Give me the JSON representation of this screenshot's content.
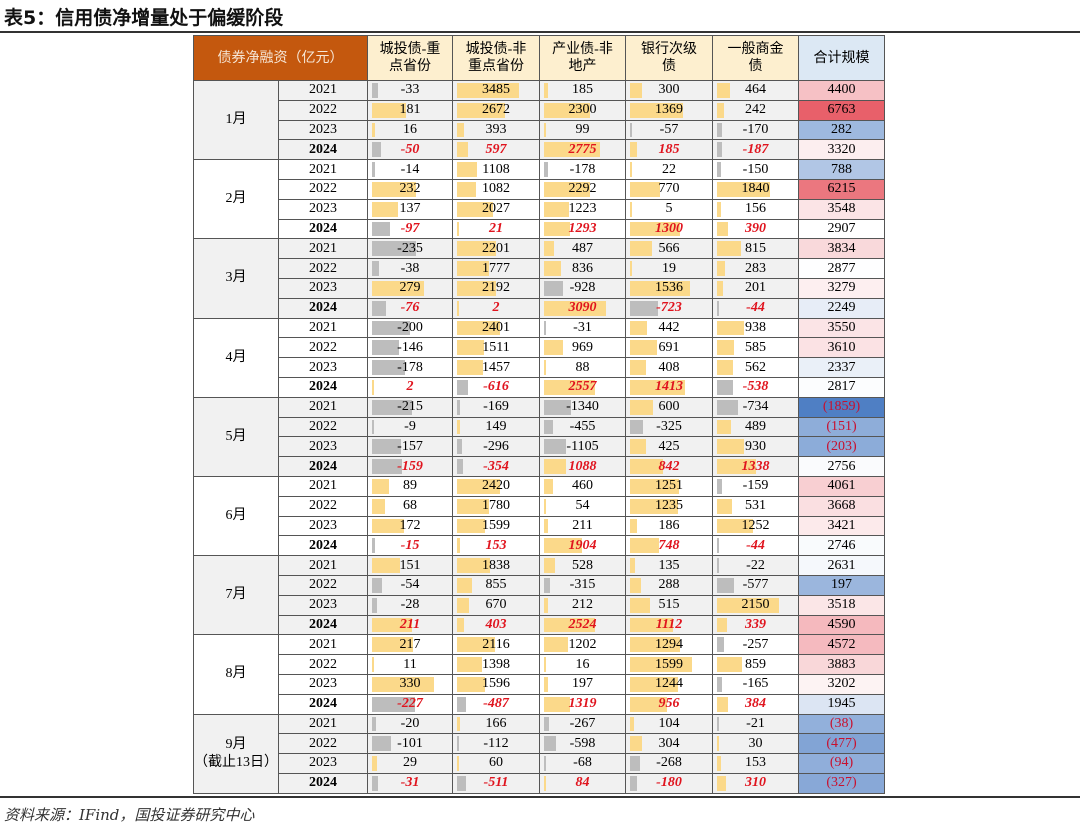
{
  "title": "表5：信用债净增量处于偏缓阶段",
  "source": "资料来源：IFind，国投证券研究中心",
  "headers": [
    "债券净融资（亿元）",
    "城投债-重点省份",
    "城投债-非重点省份",
    "产业债-非地产",
    "银行次级债",
    "一般商金债",
    "合计规模"
  ],
  "colors": {
    "header_left": "#c4580e",
    "header": "#fdefcf",
    "header_total": "#dce8f4",
    "bar_pos": "#fbd98a",
    "bar_neg": "#bdbdbd",
    "highlight_text": "#e0141e",
    "heat_high": "#e8606a",
    "heat_low": "#4f7fc4"
  },
  "months": [
    {
      "label": "1月",
      "rows": [
        {
          "year": "2021",
          "vals": [
            "-33",
            "3485",
            "185",
            "300",
            "464"
          ],
          "total": "4400"
        },
        {
          "year": "2022",
          "vals": [
            "181",
            "2672",
            "2300",
            "1369",
            "242"
          ],
          "total": "6763"
        },
        {
          "year": "2023",
          "vals": [
            "16",
            "393",
            "99",
            "-57",
            "-170"
          ],
          "total": "282"
        },
        {
          "year": "2024",
          "vals": [
            "-50",
            "597",
            "2775",
            "185",
            "-187"
          ],
          "total": "3320"
        }
      ]
    },
    {
      "label": "2月",
      "rows": [
        {
          "year": "2021",
          "vals": [
            "-14",
            "1108",
            "-178",
            "22",
            "-150"
          ],
          "total": "788"
        },
        {
          "year": "2022",
          "vals": [
            "232",
            "1082",
            "2292",
            "770",
            "1840"
          ],
          "total": "6215"
        },
        {
          "year": "2023",
          "vals": [
            "137",
            "2027",
            "1223",
            "5",
            "156"
          ],
          "total": "3548"
        },
        {
          "year": "2024",
          "vals": [
            "-97",
            "21",
            "1293",
            "1300",
            "390"
          ],
          "total": "2907"
        }
      ]
    },
    {
      "label": "3月",
      "rows": [
        {
          "year": "2021",
          "vals": [
            "-235",
            "2201",
            "487",
            "566",
            "815"
          ],
          "total": "3834"
        },
        {
          "year": "2022",
          "vals": [
            "-38",
            "1777",
            "836",
            "19",
            "283"
          ],
          "total": "2877"
        },
        {
          "year": "2023",
          "vals": [
            "279",
            "2192",
            "-928",
            "1536",
            "201"
          ],
          "total": "3279"
        },
        {
          "year": "2024",
          "vals": [
            "-76",
            "2",
            "3090",
            "-723",
            "-44"
          ],
          "total": "2249"
        }
      ]
    },
    {
      "label": "4月",
      "rows": [
        {
          "year": "2021",
          "vals": [
            "-200",
            "2401",
            "-31",
            "442",
            "938"
          ],
          "total": "3550"
        },
        {
          "year": "2022",
          "vals": [
            "-146",
            "1511",
            "969",
            "691",
            "585"
          ],
          "total": "3610"
        },
        {
          "year": "2023",
          "vals": [
            "-178",
            "1457",
            "88",
            "408",
            "562"
          ],
          "total": "2337"
        },
        {
          "year": "2024",
          "vals": [
            "2",
            "-616",
            "2557",
            "1413",
            "-538"
          ],
          "total": "2817"
        }
      ]
    },
    {
      "label": "5月",
      "rows": [
        {
          "year": "2021",
          "vals": [
            "-215",
            "-169",
            "-1340",
            "600",
            "-734"
          ],
          "total": "(1859)"
        },
        {
          "year": "2022",
          "vals": [
            "-9",
            "149",
            "-455",
            "-325",
            "489"
          ],
          "total": "(151)"
        },
        {
          "year": "2023",
          "vals": [
            "-157",
            "-296",
            "-1105",
            "425",
            "930"
          ],
          "total": "(203)"
        },
        {
          "year": "2024",
          "vals": [
            "-159",
            "-354",
            "1088",
            "842",
            "1338"
          ],
          "total": "2756"
        }
      ]
    },
    {
      "label": "6月",
      "rows": [
        {
          "year": "2021",
          "vals": [
            "89",
            "2420",
            "460",
            "1251",
            "-159"
          ],
          "total": "4061"
        },
        {
          "year": "2022",
          "vals": [
            "68",
            "1780",
            "54",
            "1235",
            "531"
          ],
          "total": "3668"
        },
        {
          "year": "2023",
          "vals": [
            "172",
            "1599",
            "211",
            "186",
            "1252"
          ],
          "total": "3421"
        },
        {
          "year": "2024",
          "vals": [
            "-15",
            "153",
            "1904",
            "748",
            "-44"
          ],
          "total": "2746"
        }
      ]
    },
    {
      "label": "7月",
      "rows": [
        {
          "year": "2021",
          "vals": [
            "151",
            "1838",
            "528",
            "135",
            "-22"
          ],
          "total": "2631"
        },
        {
          "year": "2022",
          "vals": [
            "-54",
            "855",
            "-315",
            "288",
            "-577"
          ],
          "total": "197"
        },
        {
          "year": "2023",
          "vals": [
            "-28",
            "670",
            "212",
            "515",
            "2150"
          ],
          "total": "3518"
        },
        {
          "year": "2024",
          "vals": [
            "211",
            "403",
            "2524",
            "1112",
            "339"
          ],
          "total": "4590"
        }
      ]
    },
    {
      "label": "8月",
      "rows": [
        {
          "year": "2021",
          "vals": [
            "217",
            "2116",
            "1202",
            "1294",
            "-257"
          ],
          "total": "4572"
        },
        {
          "year": "2022",
          "vals": [
            "11",
            "1398",
            "16",
            "1599",
            "859"
          ],
          "total": "3883"
        },
        {
          "year": "2023",
          "vals": [
            "330",
            "1596",
            "197",
            "1244",
            "-165"
          ],
          "total": "3202"
        },
        {
          "year": "2024",
          "vals": [
            "-227",
            "-487",
            "1319",
            "956",
            "384"
          ],
          "total": "1945"
        }
      ]
    },
    {
      "label": "9月",
      "sub": "（截止13日）",
      "rows": [
        {
          "year": "2021",
          "vals": [
            "-20",
            "166",
            "-267",
            "104",
            "-21"
          ],
          "total": "(38)"
        },
        {
          "year": "2022",
          "vals": [
            "-101",
            "-112",
            "-598",
            "304",
            "30"
          ],
          "total": "(477)"
        },
        {
          "year": "2023",
          "vals": [
            "29",
            "60",
            "-68",
            "-268",
            "153"
          ],
          "total": "(94)"
        },
        {
          "year": "2024",
          "vals": [
            "-31",
            "-511",
            "84",
            "-180",
            "310"
          ],
          "total": "(327)"
        }
      ]
    }
  ]
}
